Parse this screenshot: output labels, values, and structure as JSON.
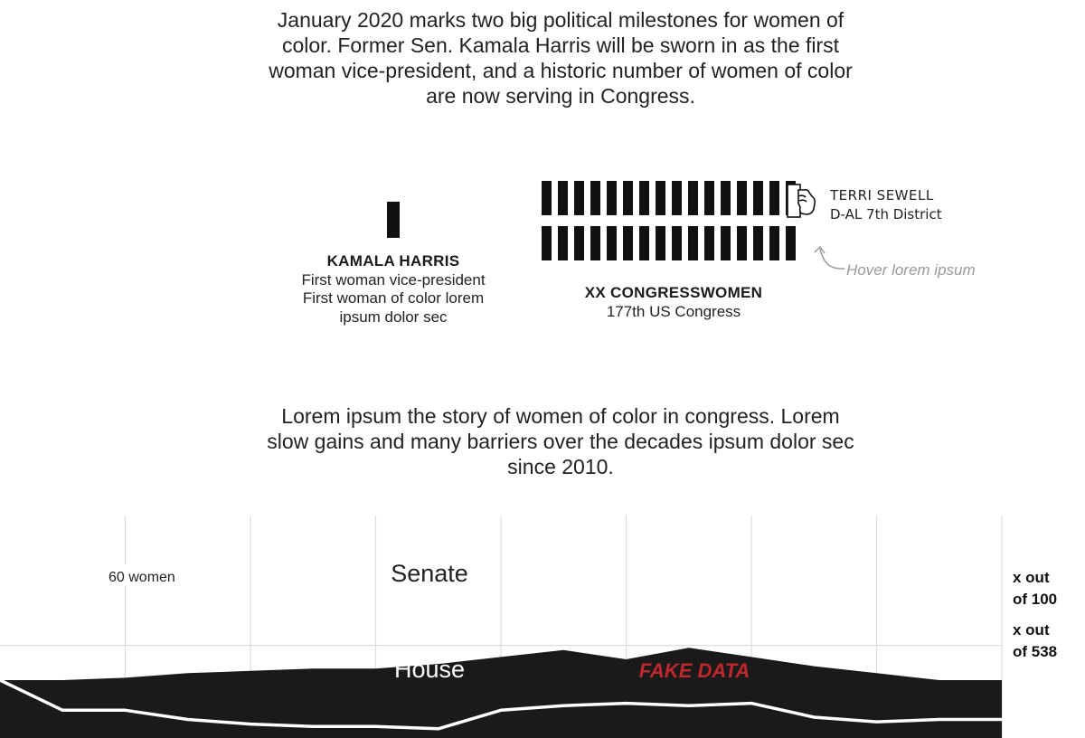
{
  "intro": {
    "line1": "January 2020 marks two big political milestones for women of",
    "line2": "color. Former Sen. Kamala Harris will be sworn in as the first",
    "line3": "woman vice-president, and a historic number of women of color",
    "line4": "are now serving in Congress."
  },
  "vice_president": {
    "name": "KAMALA HARRIS",
    "line1": "First woman vice-president",
    "line2": "First woman of color lorem",
    "line3": "ipsum dolor sec"
  },
  "congress": {
    "title": "XX CONGRESSWOMEN",
    "subtitle": "177th US Congress",
    "rows": [
      16,
      16
    ]
  },
  "tooltip": {
    "name": "TERRI SEWELL",
    "district": "D-AL 7th District",
    "hover_note": "Hover lorem ipsum",
    "icon": "pointer-hand-icon"
  },
  "story": {
    "line1": "Lorem ipsum the story of women of color in congress. Lorem",
    "line2": "slow gains and many barriers over the decades ipsum dolor sec",
    "line3": "since 2010."
  },
  "chart_data": {
    "type": "area",
    "title": "",
    "xlabel": "",
    "ylabel": "",
    "x": [
      1,
      2,
      3,
      4,
      5,
      6,
      7,
      8,
      9,
      10,
      11,
      12,
      13,
      14,
      15,
      16,
      17
    ],
    "series": [
      {
        "name": "Senate",
        "values": [
          75,
          75,
          74,
          72,
          71,
          70,
          70,
          68,
          65,
          62,
          66,
          61,
          65,
          69,
          72,
          75,
          75
        ]
      },
      {
        "name": "House",
        "values": [
          75,
          88,
          88,
          92,
          94,
          95,
          95,
          96,
          88,
          86,
          85,
          86,
          85,
          91,
          93,
          92,
          92
        ]
      }
    ],
    "series_display_max": [
      100,
      538
    ],
    "ylim": [
      0,
      100
    ],
    "reference_line": {
      "label": "60 women",
      "y": 60
    },
    "series_labels": [
      "Senate",
      "House"
    ],
    "right_labels": [
      "x out of 100",
      "x out of 538"
    ],
    "annotation": "FAKE DATA",
    "colors": {
      "area": "#1a1a1a",
      "house_line": "#ffffff",
      "grid": "#dddddd",
      "annotation": "#c0272d"
    }
  }
}
